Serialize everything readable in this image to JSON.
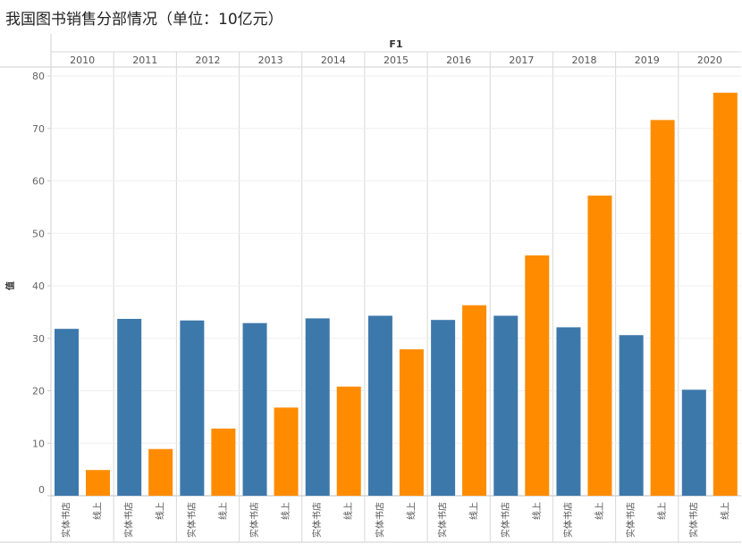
{
  "title": "我国图书销售分部情况（单位：10亿元）",
  "chart_data": {
    "type": "bar",
    "title": "我国图书销售分部情况（单位：10亿元）",
    "column_header": "F1",
    "ylabel": "值",
    "ylim": [
      0,
      80
    ],
    "yticks": [
      0,
      10,
      20,
      30,
      40,
      50,
      60,
      70,
      80
    ],
    "categories": [
      "2010",
      "2011",
      "2012",
      "2013",
      "2014",
      "2015",
      "2016",
      "2017",
      "2018",
      "2019",
      "2020"
    ],
    "series": [
      {
        "name": "实体书店",
        "color": "#3d78ab",
        "values": [
          31.8,
          33.7,
          33.4,
          32.9,
          33.8,
          34.3,
          33.5,
          34.3,
          32.1,
          30.6,
          20.2
        ]
      },
      {
        "name": "线上",
        "color": "#ff8c00",
        "values": [
          4.9,
          8.9,
          12.8,
          16.8,
          20.8,
          27.9,
          36.3,
          45.8,
          57.2,
          71.6,
          76.8
        ]
      }
    ],
    "grid": true
  }
}
